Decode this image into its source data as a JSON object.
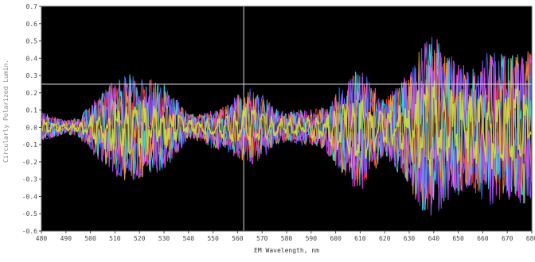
{
  "chart_data": {
    "type": "line",
    "xlabel": "EM  Wavelength, nm",
    "ylabel": "Circularly Polarized Lumin.",
    "xlim": [
      480,
      680
    ],
    "ylim": [
      -0.6,
      0.7
    ],
    "x_ticks": [
      480,
      490,
      500,
      510,
      520,
      530,
      540,
      550,
      560,
      570,
      580,
      590,
      600,
      610,
      620,
      630,
      640,
      650,
      660,
      670,
      680
    ],
    "y_ticks": [
      -0.6,
      -0.5,
      -0.4,
      -0.3,
      -0.2,
      -0.1,
      0.0,
      0.1,
      0.2,
      0.3,
      0.4,
      0.5,
      0.6,
      0.7
    ],
    "y_tick_labels": [
      "-0.6",
      "-0.5",
      "-0.4",
      "-0.3",
      "-0.2",
      "-0.1",
      "0.0",
      "0.1",
      "0.2",
      "0.3",
      "0.4",
      "0.5",
      "0.6",
      "0.7"
    ],
    "background": "#000000",
    "grid": false,
    "cursor": {
      "x": 562.5,
      "y": 0.25,
      "color": "#d8d8d8"
    },
    "envelope": {
      "x": [
        480,
        485,
        490,
        495,
        500,
        505,
        510,
        515,
        520,
        525,
        530,
        535,
        540,
        545,
        550,
        555,
        560,
        565,
        570,
        575,
        580,
        585,
        590,
        595,
        600,
        605,
        610,
        615,
        620,
        625,
        630,
        635,
        640,
        645,
        650,
        655,
        660,
        665,
        670,
        675,
        680
      ],
      "upper": [
        0.1,
        0.06,
        0.04,
        0.05,
        0.12,
        0.2,
        0.28,
        0.3,
        0.29,
        0.27,
        0.25,
        0.18,
        0.1,
        0.08,
        0.05,
        0.1,
        0.2,
        0.25,
        0.22,
        0.12,
        0.1,
        0.11,
        0.1,
        0.1,
        0.18,
        0.26,
        0.3,
        0.22,
        0.15,
        0.22,
        0.28,
        0.45,
        0.55,
        0.42,
        0.38,
        0.32,
        0.4,
        0.45,
        0.4,
        0.42,
        0.45
      ],
      "lower": [
        -0.08,
        -0.06,
        -0.04,
        -0.06,
        -0.15,
        -0.24,
        -0.3,
        -0.33,
        -0.32,
        -0.28,
        -0.25,
        -0.15,
        -0.05,
        -0.08,
        -0.18,
        -0.15,
        -0.18,
        -0.2,
        -0.18,
        -0.1,
        -0.08,
        -0.1,
        -0.12,
        -0.14,
        -0.25,
        -0.36,
        -0.42,
        -0.3,
        -0.18,
        -0.28,
        -0.4,
        -0.5,
        -0.52,
        -0.46,
        -0.4,
        -0.38,
        -0.45,
        -0.48,
        -0.44,
        -0.45,
        -0.45
      ]
    },
    "series": [
      {
        "color": "#c8dc3c",
        "values": []
      },
      {
        "color": "#ff3a3a",
        "values": []
      },
      {
        "color": "#3a6cff",
        "values": []
      },
      {
        "color": "#ff44ff",
        "values": []
      },
      {
        "color": "#33e0e0",
        "values": []
      },
      {
        "color": "#ff9a33",
        "values": []
      },
      {
        "color": "#9a5cff",
        "values": []
      }
    ]
  }
}
